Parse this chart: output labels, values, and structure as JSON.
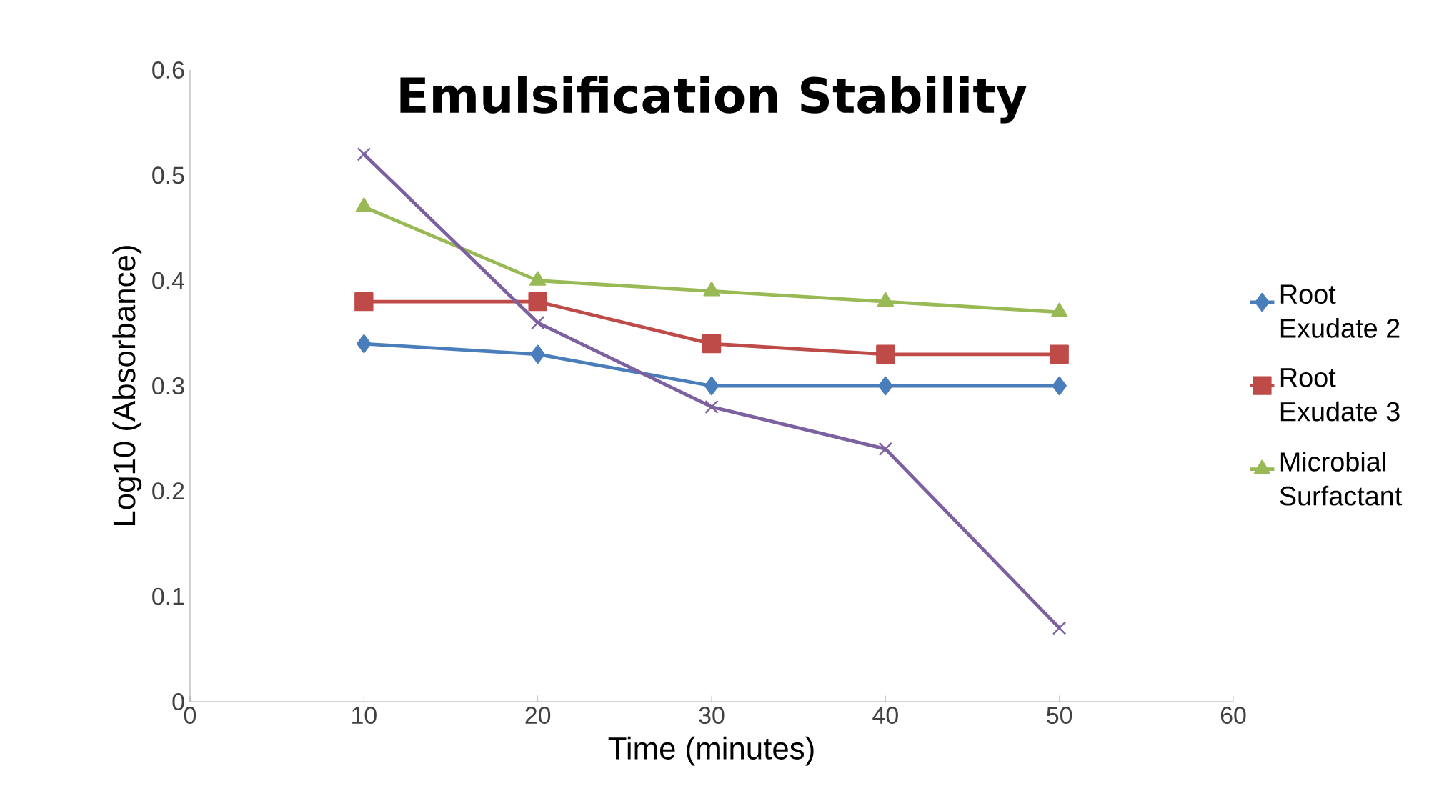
{
  "chart_data": {
    "type": "line",
    "title": "Emulsification Stability",
    "xlabel": "Time (minutes)",
    "ylabel": "Log10 (Absorbance)",
    "x": [
      10,
      20,
      30,
      40,
      50
    ],
    "series": [
      {
        "name": "Root Exudate 2",
        "color": "#4a7ebb",
        "marker": "diamond",
        "values": [
          0.34,
          0.33,
          0.3,
          0.3,
          0.3
        ]
      },
      {
        "name": "Root Exudate 3",
        "color": "#be4b48",
        "marker": "square",
        "values": [
          0.38,
          0.38,
          0.34,
          0.33,
          0.33
        ]
      },
      {
        "name": "Microbial Surfactant",
        "color": "#98b954",
        "marker": "triangle",
        "values": [
          0.47,
          0.4,
          0.39,
          0.38,
          0.37
        ]
      },
      {
        "color": "#7d60a0",
        "marker": "cross",
        "values": [
          0.52,
          0.36,
          0.28,
          0.24,
          0.07
        ]
      }
    ],
    "xlim": [
      0,
      60
    ],
    "ylim": [
      0,
      0.6
    ],
    "xticks": [
      0,
      10,
      20,
      30,
      40,
      50,
      60
    ],
    "yticks": [
      0,
      0.1,
      0.2,
      0.3,
      0.4,
      0.5,
      0.6
    ],
    "grid": false,
    "legend": "right",
    "line_style": "solid"
  }
}
